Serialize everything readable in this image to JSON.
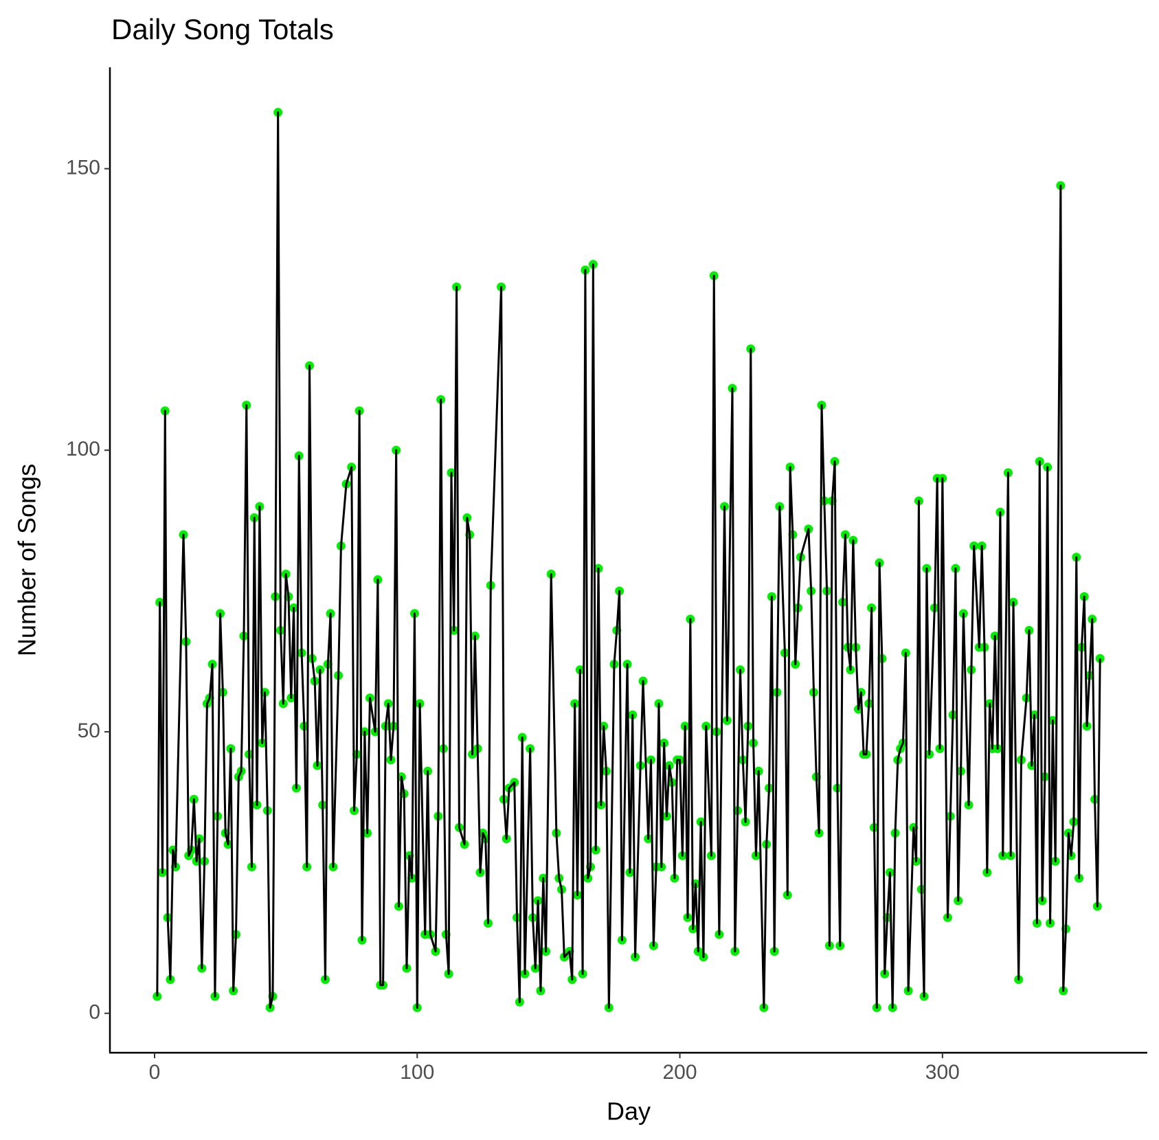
{
  "chart_data": {
    "type": "line",
    "title": "Daily Song Totals",
    "x_label": "Day",
    "y_label": "Number of Songs",
    "x": [
      1,
      2,
      3,
      4,
      5,
      6,
      7,
      8,
      11,
      12,
      13,
      14,
      15,
      16,
      17,
      18,
      19,
      20,
      21,
      22,
      23,
      24,
      25,
      26,
      27,
      28,
      29,
      30,
      31,
      32,
      33,
      34,
      35,
      36,
      37,
      38,
      39,
      40,
      41,
      42,
      43,
      44,
      45,
      46,
      47,
      48,
      49,
      50,
      51,
      52,
      53,
      54,
      55,
      56,
      57,
      58,
      59,
      60,
      61,
      62,
      63,
      64,
      65,
      66,
      67,
      68,
      70,
      71,
      73,
      75,
      76,
      77,
      78,
      79,
      80,
      81,
      82,
      84,
      85,
      86,
      87,
      88,
      89,
      90,
      91,
      92,
      93,
      94,
      95,
      96,
      97,
      98,
      99,
      100,
      101,
      103,
      104,
      105,
      107,
      108,
      109,
      110,
      111,
      112,
      113,
      114,
      115,
      116,
      118,
      119,
      120,
      121,
      122,
      123,
      124,
      125,
      126,
      127,
      128,
      132,
      133,
      134,
      135,
      137,
      138,
      139,
      140,
      141,
      143,
      144,
      145,
      146,
      147,
      148,
      149,
      151,
      153,
      154,
      155,
      156,
      158,
      159,
      160,
      161,
      162,
      163,
      164,
      165,
      166,
      167,
      168,
      169,
      170,
      171,
      172,
      173,
      175,
      176,
      177,
      178,
      180,
      181,
      182,
      183,
      185,
      186,
      188,
      189,
      190,
      191,
      192,
      193,
      194,
      195,
      196,
      197,
      198,
      199,
      200,
      201,
      202,
      203,
      204,
      205,
      206,
      207,
      208,
      209,
      210,
      212,
      213,
      214,
      215,
      217,
      218,
      220,
      221,
      222,
      223,
      224,
      225,
      226,
      227,
      228,
      229,
      230,
      232,
      233,
      234,
      235,
      236,
      237,
      238,
      240,
      241,
      242,
      243,
      244,
      245,
      246,
      249,
      250,
      251,
      252,
      253,
      254,
      255,
      256,
      257,
      258,
      259,
      260,
      261,
      262,
      263,
      264,
      265,
      266,
      267,
      268,
      269,
      270,
      271,
      272,
      273,
      274,
      275,
      276,
      277,
      278,
      279,
      280,
      281,
      282,
      283,
      284,
      285,
      286,
      287,
      289,
      290,
      291,
      292,
      293,
      294,
      295,
      297,
      298,
      299,
      300,
      302,
      303,
      304,
      305,
      306,
      307,
      308,
      310,
      311,
      312,
      314,
      315,
      316,
      317,
      318,
      319,
      320,
      321,
      322,
      323,
      325,
      326,
      327,
      329,
      330,
      332,
      333,
      334,
      335,
      336,
      337,
      338,
      339,
      340,
      341,
      342,
      343,
      345,
      346,
      347,
      348,
      349,
      350,
      351,
      352,
      353,
      354,
      355,
      356,
      357,
      358,
      359,
      360
    ],
    "values": [
      3,
      73,
      25,
      107,
      17,
      6,
      29,
      26,
      85,
      66,
      28,
      29,
      38,
      27,
      31,
      8,
      27,
      55,
      56,
      62,
      3,
      35,
      71,
      57,
      32,
      30,
      47,
      4,
      14,
      42,
      43,
      67,
      108,
      46,
      26,
      88,
      37,
      90,
      48,
      57,
      36,
      1,
      3,
      74,
      160,
      68,
      55,
      78,
      74,
      56,
      72,
      40,
      99,
      64,
      51,
      26,
      115,
      63,
      59,
      44,
      61,
      37,
      6,
      62,
      71,
      26,
      60,
      83,
      94,
      97,
      36,
      46,
      107,
      13,
      50,
      32,
      56,
      50,
      77,
      5,
      5,
      51,
      55,
      45,
      51,
      100,
      19,
      42,
      39,
      8,
      28,
      24,
      71,
      1,
      55,
      14,
      43,
      14,
      11,
      35,
      109,
      47,
      14,
      7,
      96,
      68,
      129,
      33,
      30,
      88,
      85,
      46,
      67,
      47,
      25,
      32,
      31,
      16,
      76,
      129,
      38,
      31,
      40,
      41,
      17,
      2,
      49,
      7,
      47,
      17,
      8,
      20,
      4,
      24,
      11,
      78,
      32,
      24,
      22,
      10,
      11,
      6,
      55,
      21,
      61,
      7,
      132,
      24,
      26,
      133,
      29,
      79,
      37,
      51,
      43,
      1,
      62,
      68,
      75,
      13,
      62,
      25,
      53,
      10,
      44,
      59,
      31,
      45,
      12,
      26,
      55,
      26,
      48,
      35,
      44,
      41,
      24,
      45,
      45,
      28,
      51,
      17,
      70,
      15,
      23,
      11,
      34,
      10,
      51,
      28,
      131,
      50,
      14,
      90,
      52,
      111,
      11,
      36,
      61,
      45,
      34,
      51,
      118,
      48,
      28,
      43,
      1,
      30,
      40,
      74,
      11,
      57,
      90,
      64,
      21,
      97,
      85,
      62,
      72,
      81,
      86,
      75,
      57,
      42,
      32,
      108,
      91,
      75,
      12,
      91,
      98,
      40,
      12,
      73,
      85,
      65,
      61,
      84,
      65,
      54,
      57,
      46,
      46,
      55,
      72,
      33,
      1,
      80,
      63,
      7,
      17,
      25,
      1,
      32,
      45,
      47,
      48,
      64,
      4,
      33,
      27,
      91,
      22,
      3,
      79,
      46,
      72,
      95,
      47,
      95,
      17,
      35,
      53,
      79,
      20,
      43,
      71,
      37,
      61,
      83,
      65,
      83,
      65,
      25,
      55,
      47,
      67,
      47,
      89,
      28,
      96,
      28,
      73,
      6,
      45,
      56,
      68,
      44,
      53,
      16,
      98,
      20,
      42,
      97,
      16,
      52,
      27,
      147,
      4,
      15,
      32,
      28,
      34,
      81,
      24,
      65,
      74,
      51,
      60,
      70,
      38,
      19,
      63
    ],
    "line_color": "#000000",
    "point_color": "#00ee00",
    "xlim": [
      -17,
      378
    ],
    "ylim": [
      -7,
      168
    ],
    "xticks": [
      0,
      100,
      200,
      300
    ],
    "yticks": [
      0,
      50,
      100,
      150
    ],
    "grid": false
  }
}
